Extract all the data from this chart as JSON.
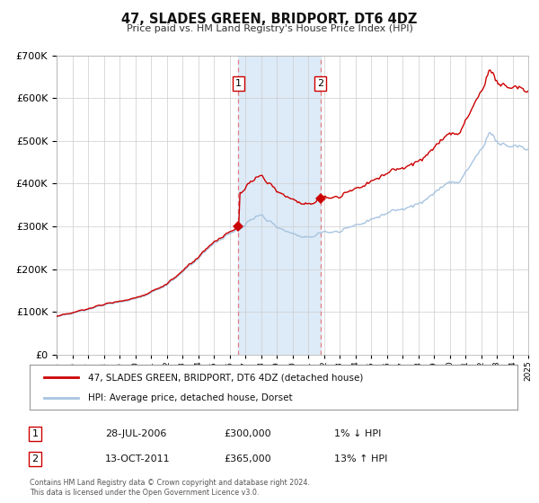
{
  "title": "47, SLADES GREEN, BRIDPORT, DT6 4DZ",
  "subtitle": "Price paid vs. HM Land Registry's House Price Index (HPI)",
  "legend_line1": "47, SLADES GREEN, BRIDPORT, DT6 4DZ (detached house)",
  "legend_line2": "HPI: Average price, detached house, Dorset",
  "table_row1_num": "1",
  "table_row1_date": "28-JUL-2006",
  "table_row1_price": "£300,000",
  "table_row1_hpi": "1% ↓ HPI",
  "table_row2_num": "2",
  "table_row2_date": "13-OCT-2011",
  "table_row2_price": "£365,000",
  "table_row2_hpi": "13% ↑ HPI",
  "footer1": "Contains HM Land Registry data © Crown copyright and database right 2024.",
  "footer2": "This data is licensed under the Open Government Licence v3.0.",
  "sale1_year": 2006.57,
  "sale1_price": 300000,
  "sale2_year": 2011.79,
  "sale2_price": 365000,
  "hpi_color": "#a8c4e0",
  "price_color": "#cc0000",
  "sale_dot_color": "#cc0000",
  "vline_color": "#e08080",
  "shade_color": "#ddeaf7",
  "ylim_min": 0,
  "ylim_max": 700000,
  "xlim_min": 1995,
  "xlim_max": 2025,
  "background_color": "#ffffff",
  "grid_color": "#cccccc"
}
